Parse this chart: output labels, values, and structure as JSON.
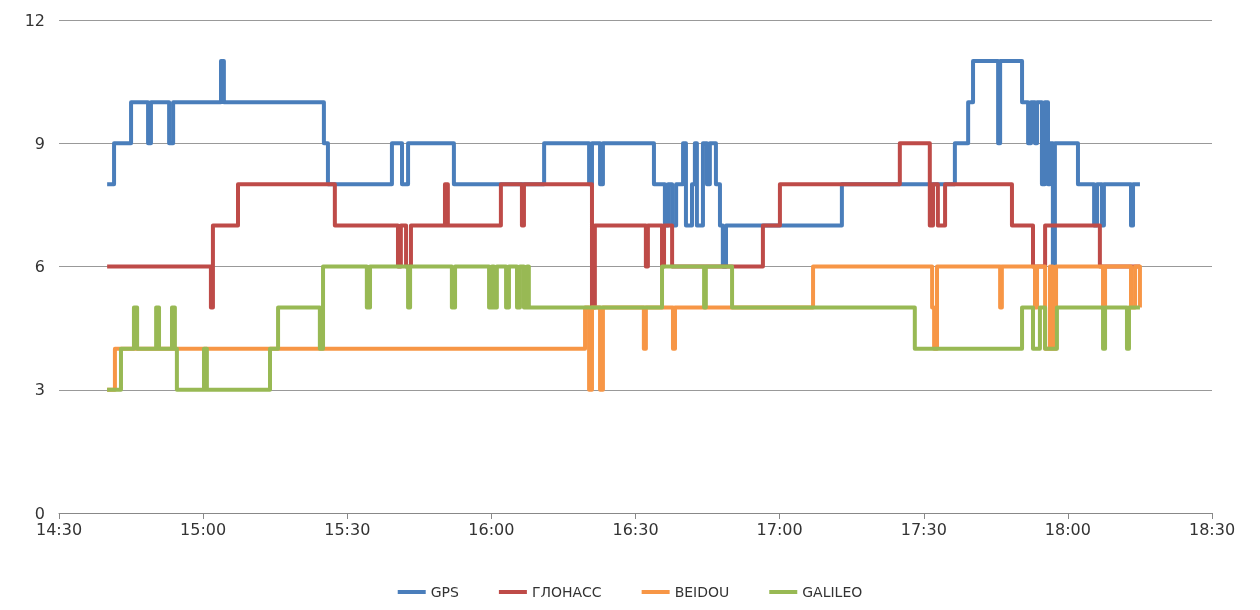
{
  "chart_data": {
    "type": "step",
    "xlim": [
      14.5,
      18.5
    ],
    "xticks": [
      {
        "value": 14.5,
        "label": "14:30"
      },
      {
        "value": 15,
        "label": "15:00"
      },
      {
        "value": 15.5,
        "label": "15:30"
      },
      {
        "value": 16,
        "label": "16:00"
      },
      {
        "value": 16.5,
        "label": "16:30"
      },
      {
        "value": 17,
        "label": "17:00"
      },
      {
        "value": 17.5,
        "label": "17:30"
      },
      {
        "value": 18,
        "label": "18:00"
      },
      {
        "value": 18.5,
        "label": "18:30"
      }
    ],
    "ylim": [
      0,
      12
    ],
    "yticks": [
      0,
      3,
      6,
      9,
      12
    ],
    "grid": "y",
    "legend": "bottom",
    "marker": "none",
    "line_style": "solid",
    "series": [
      {
        "name": "GPS",
        "color": "#4a7ebb",
        "x": [
          14.667,
          14.691,
          14.75,
          14.809,
          14.819,
          14.882,
          14.896,
          15.062,
          15.072,
          15.419,
          15.433,
          15.655,
          15.69,
          15.711,
          15.87,
          16.183,
          16.339,
          16.349,
          16.377,
          16.387,
          16.564,
          16.602,
          16.613,
          16.627,
          16.641,
          16.665,
          16.675,
          16.696,
          16.706,
          16.713,
          16.734,
          16.748,
          16.758,
          16.779,
          16.793,
          16.803,
          16.814,
          17.216,
          17.608,
          17.654,
          17.671,
          17.758,
          17.765,
          17.841,
          17.862,
          17.872,
          17.886,
          17.893,
          17.91,
          17.92,
          17.931,
          17.938,
          17.948,
          17.955,
          18.035,
          18.091,
          18.101,
          18.118,
          18.125,
          18.219,
          18.226,
          18.25
        ],
        "values": [
          8,
          9,
          10,
          9,
          10,
          9,
          10,
          11,
          10,
          9,
          8,
          9,
          8,
          9,
          8,
          9,
          8,
          9,
          8,
          9,
          8,
          7,
          8,
          7,
          8,
          9,
          7,
          8,
          9,
          7,
          9,
          8,
          9,
          8,
          7,
          6,
          7,
          8,
          9,
          10,
          11,
          9,
          11,
          10,
          9,
          10,
          9,
          10,
          8,
          10,
          8,
          9,
          6,
          9,
          8,
          7,
          8,
          7,
          8,
          7,
          8,
          8
        ]
      },
      {
        "name": "ГЛОНАСС",
        "color": "#be4b48",
        "x": [
          14.667,
          15.027,
          15.034,
          15.121,
          15.457,
          15.676,
          15.686,
          15.704,
          15.721,
          15.839,
          15.849,
          16.033,
          16.106,
          16.113,
          16.349,
          16.359,
          16.536,
          16.543,
          16.592,
          16.599,
          16.627,
          16.942,
          17.001,
          17.417,
          17.521,
          17.532,
          17.549,
          17.574,
          17.806,
          17.879,
          17.921,
          18.111,
          18.25
        ],
        "values": [
          6,
          5,
          7,
          8,
          7,
          6,
          7,
          6,
          7,
          8,
          7,
          8,
          7,
          8,
          5,
          7,
          6,
          7,
          6,
          7,
          6,
          7,
          8,
          9,
          7,
          8,
          7,
          8,
          7,
          6,
          7,
          6,
          6
        ]
      },
      {
        "name": "BEIDOU",
        "color": "#f79646",
        "x": [
          14.667,
          14.694,
          16.325,
          16.339,
          16.349,
          16.377,
          16.387,
          16.529,
          16.536,
          16.63,
          16.637,
          17.116,
          17.529,
          17.536,
          17.546,
          17.765,
          17.771,
          17.886,
          17.893,
          17.921,
          17.938,
          17.948,
          17.959,
          18.122,
          18.129,
          18.219,
          18.233,
          18.25
        ],
        "values": [
          3,
          4,
          5,
          3,
          5,
          3,
          5,
          4,
          5,
          4,
          5,
          6,
          5,
          4,
          6,
          5,
          6,
          5,
          6,
          4,
          6,
          4,
          6,
          5,
          6,
          5,
          6,
          5
        ]
      },
      {
        "name": "GALILEO",
        "color": "#98b954",
        "x": [
          14.667,
          14.715,
          14.76,
          14.771,
          14.837,
          14.847,
          14.892,
          14.902,
          14.909,
          15.003,
          15.013,
          15.232,
          15.26,
          15.405,
          15.416,
          15.568,
          15.579,
          15.711,
          15.718,
          15.863,
          15.874,
          15.992,
          16.002,
          16.009,
          16.019,
          16.051,
          16.061,
          16.089,
          16.099,
          16.113,
          16.124,
          16.13,
          16.592,
          16.738,
          16.744,
          16.835,
          17.469,
          17.841,
          17.879,
          17.903,
          17.921,
          17.962,
          18.122,
          18.129,
          18.205,
          18.212,
          18.25
        ],
        "values": [
          3,
          4,
          5,
          4,
          5,
          4,
          5,
          4,
          3,
          4,
          3,
          4,
          5,
          4,
          6,
          5,
          6,
          5,
          6,
          5,
          6,
          5,
          6,
          5,
          6,
          5,
          6,
          5,
          6,
          5,
          6,
          5,
          6,
          5,
          6,
          5,
          4,
          5,
          4,
          5,
          4,
          5,
          4,
          5,
          4,
          5,
          5
        ]
      }
    ]
  }
}
